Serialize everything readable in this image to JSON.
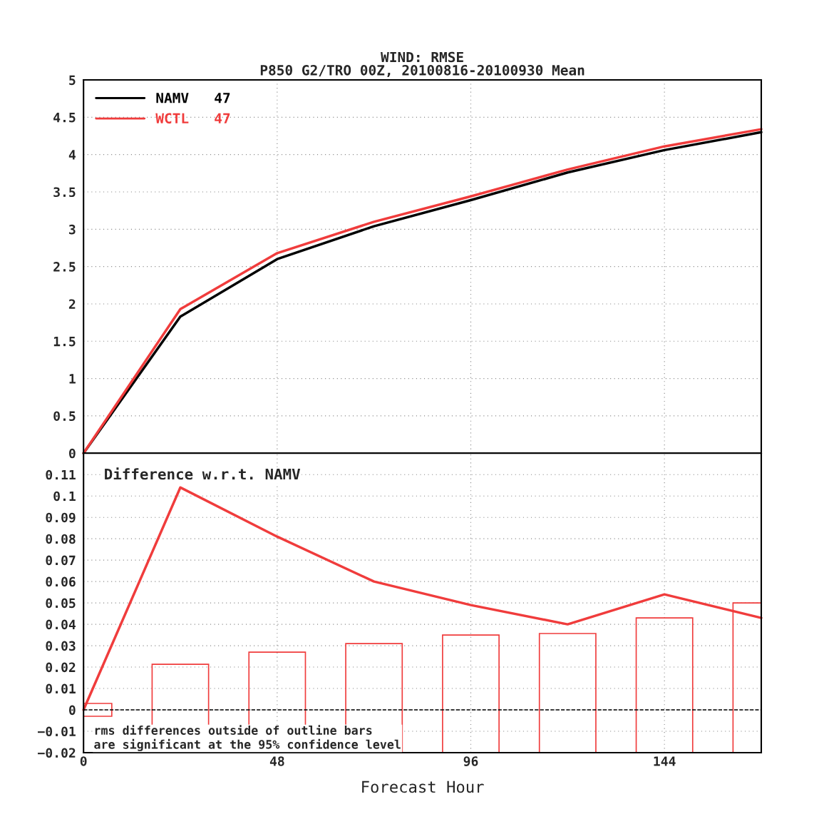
{
  "chart_data": [
    {
      "type": "line",
      "title": "WIND: RMSE",
      "subtitle": "P850 G2/TRO 00Z, 20100816-20100930 Mean",
      "x": [
        0,
        24,
        48,
        72,
        96,
        120,
        144,
        168
      ],
      "series": [
        {
          "name": "NAMV   47",
          "color": "#000000",
          "values": [
            0,
            1.83,
            2.6,
            3.04,
            3.39,
            3.76,
            4.06,
            4.3
          ]
        },
        {
          "name": "WCTL   47",
          "color": "#f03c3c",
          "values": [
            0,
            1.93,
            2.68,
            3.1,
            3.44,
            3.8,
            4.11,
            4.34
          ]
        }
      ],
      "xlim": [
        0,
        168
      ],
      "xticks": [
        0,
        48,
        96,
        144
      ],
      "ylim": [
        0,
        5
      ],
      "yticks": [
        0,
        0.5,
        1,
        1.5,
        2,
        2.5,
        3,
        3.5,
        4,
        4.5,
        5
      ],
      "grid": true,
      "legend": "top left",
      "tick_labels": "y",
      "marker": "none",
      "line_style": "solid"
    },
    {
      "type": "line",
      "xlabel": "Forecast Hour",
      "annotations": [
        "Difference w.r.t. NAMV",
        "rms differences outside of outline bars\nare significant at the 95% confidence level"
      ],
      "x": [
        0,
        24,
        48,
        72,
        96,
        120,
        144,
        168
      ],
      "series": [
        {
          "type": "line",
          "color": "#f03c3c",
          "values": [
            0,
            0.104,
            0.081,
            0.06,
            0.049,
            0.04,
            0.054,
            0.043
          ]
        },
        {
          "type": "bar",
          "color": "#f03c3c",
          "base": [
            -0.003,
            -0.02,
            -0.02,
            -0.02,
            -0.02,
            -0.02,
            -0.02,
            -0.02
          ],
          "values": [
            0.006,
            0.0413,
            0.047,
            0.051,
            0.055,
            0.0557,
            0.063,
            0.07
          ]
        }
      ],
      "ref_lines": [
        {
          "axis": "y",
          "value": 0,
          "color": "#000000",
          "line_style": "dashed"
        }
      ],
      "xlim": [
        0,
        168
      ],
      "xticks": [
        0,
        48,
        96,
        144
      ],
      "ylim": [
        -0.02,
        0.12
      ],
      "yticks": [
        {
          "value": -0.02,
          "label": "−0.02"
        },
        {
          "value": -0.01,
          "label": "−0.01"
        },
        0,
        0.01,
        0.02,
        0.03,
        0.04,
        0.05,
        0.06,
        0.07,
        0.08,
        0.09,
        0.1,
        0.11
      ],
      "grid": true,
      "marker": "none",
      "line_style": "solid"
    }
  ]
}
